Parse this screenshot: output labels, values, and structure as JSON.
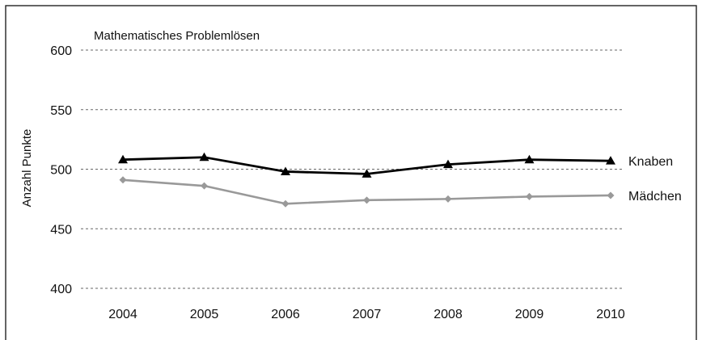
{
  "chart_data": {
    "type": "line",
    "title": "Mathematisches Problemlösen",
    "xlabel": "",
    "ylabel": "Anzahl Punkte",
    "categories": [
      "2004",
      "2005",
      "2006",
      "2007",
      "2008",
      "2009",
      "2010"
    ],
    "ylim": [
      400,
      600
    ],
    "yticks": [
      400,
      450,
      500,
      550,
      600
    ],
    "grid": true,
    "series": [
      {
        "name": "Knaben",
        "values": [
          508,
          510,
          498,
          496,
          504,
          508,
          507
        ],
        "color": "#000000",
        "marker": "triangle"
      },
      {
        "name": "Mädchen",
        "values": [
          491,
          486,
          471,
          474,
          475,
          477,
          478
        ],
        "color": "#999999",
        "marker": "diamond"
      }
    ]
  }
}
